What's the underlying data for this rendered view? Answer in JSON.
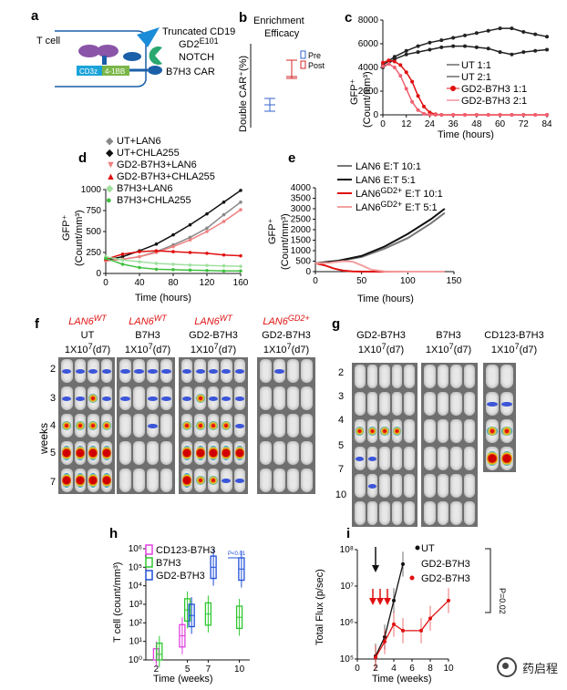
{
  "panel_a": {
    "letter": "a",
    "t_cell": "T cell",
    "truncated_cd19": "Truncated CD19",
    "gd2_e101": "GD2",
    "gd2_sup": "E101",
    "notch": "NOTCH",
    "cd3z": "CD3z",
    "four_1bb": "4-1BB",
    "b7h3_car": "B7H3 CAR",
    "colors": {
      "cd3z": "#1aa3d9",
      "four_1bb": "#7ab648",
      "notch": "#2aa870",
      "triangle": "#1a8cd8",
      "purple": "#8a55a8"
    }
  },
  "panel_b": {
    "letter": "b",
    "title1": "Enrichment",
    "title2": "Efficacy",
    "ylabel": "Double CAR⁺(%)",
    "legend": [
      "Pre",
      "Post"
    ],
    "colors": {
      "pre": "#3366cc",
      "post": "#d62728"
    }
  },
  "panel_c": {
    "letter": "c",
    "ylabel1": "GFP⁺",
    "ylabel2": "(Count/mm³)",
    "xlabel": "Time (hours)",
    "legend": [
      "UT 1:1",
      "UT 2:1",
      "GD2-B7H3 1:1",
      "GD2-B7H3 2:1"
    ]
  },
  "panel_d": {
    "letter": "d",
    "ylabel1": "GFP⁺",
    "ylabel2": "(Count/mm³)",
    "xlabel": "Time (hours)",
    "legend": [
      "UT+LAN6",
      "UT+CHLA255",
      "GD2-B7H3+LAN6",
      "GD2-B7H3+CHLA255",
      "B7H3+LAN6",
      "B7H3+CHLA255"
    ]
  },
  "panel_e": {
    "letter": "e",
    "ylabel1": "GFP⁺",
    "ylabel2": "(Count/mm³)",
    "xlabel": "Time (hours)",
    "legend": [
      "LAN6 E:T 10:1",
      "LAN6 E:T 5:1",
      "LAN6",
      "E:T 10:1",
      "LAN6",
      "E:T 5:1"
    ],
    "legend_sup": "GD2+"
  },
  "panel_f": {
    "letter": "f",
    "weeks_label": "weeks",
    "week_rows": [
      "2",
      "3",
      "4",
      "5",
      "7"
    ],
    "groups": [
      {
        "line1": "LAN6",
        "line1_sup": "WT",
        "line2": "UT",
        "line3": "1X10",
        "line3_sup": "7",
        "line3_end": "(d7)"
      },
      {
        "line1": "LAN6",
        "line1_sup": "WT",
        "line2": "B7H3",
        "line3": "1X10",
        "line3_sup": "7",
        "line3_end": "(d7)"
      },
      {
        "line1": "LAN6",
        "line1_sup": "WT",
        "line2": "GD2-B7H3",
        "line3": "1X10",
        "line3_sup": "7",
        "line3_end": "(d7)"
      },
      {
        "line1": "LAN6",
        "line1_sup": "GD2+",
        "line2": "GD2-B7H3",
        "line3": "1X10",
        "line3_sup": "7",
        "line3_end": "(d7)"
      }
    ]
  },
  "panel_g": {
    "letter": "g",
    "week_rows": [
      "2",
      "3",
      "4",
      "5",
      "7",
      "10"
    ],
    "groups": [
      {
        "line1": "GD2-B7H3",
        "line2": "1X10",
        "line2_sup": "7",
        "line2_end": "(d7)"
      },
      {
        "line1": "B7H3",
        "line2": "1X10",
        "line2_sup": "7",
        "line2_end": "(d7)"
      },
      {
        "line1": "CD123-B7H3",
        "line2": "1X10",
        "line2_sup": "7",
        "line2_end": "(d7)"
      }
    ]
  },
  "panel_h": {
    "letter": "h",
    "ylabel": "T cell (count/mm³)",
    "xlabel": "Time (weeks)",
    "legend": [
      "CD123-B7H3",
      "B7H3",
      "GD2-B7H3"
    ],
    "pvalue": "P<0.01",
    "xticks": [
      "2",
      "5",
      "7",
      "10"
    ],
    "yticks": [
      "10⁰",
      "10¹",
      "10²",
      "10³",
      "10⁴",
      "10⁵",
      "10⁶"
    ],
    "colors": {
      "cd123": "#e040e0",
      "b7h3": "#2ec82e",
      "gd2": "#1f4fd8"
    }
  },
  "panel_i": {
    "letter": "i",
    "ylabel": "Total Flux (p/sec)",
    "xlabel": "Time (weeks)",
    "legend": [
      "UT",
      "GD2-B7H3",
      "GD2-B7H3"
    ],
    "pvalue": "P=0.02",
    "xticks": [
      "0",
      "2",
      "4",
      "6",
      "8",
      "10"
    ],
    "yticks": [
      "10⁵",
      "10⁶",
      "10⁷",
      "10⁸"
    ]
  },
  "watermark": "药启程",
  "chart_data": [
    {
      "type": "line",
      "panel": "c",
      "xlabel": "Time (hours)",
      "ylabel": "GFP+ (Count/mm3)",
      "xlim": [
        0,
        84
      ],
      "ylim": [
        0,
        8000
      ],
      "xticks": [
        0,
        12,
        24,
        36,
        48,
        60,
        72,
        84
      ],
      "yticks": [
        0,
        2000,
        4000,
        6000,
        8000
      ],
      "series": [
        {
          "name": "UT 1:1",
          "color": "#222222",
          "x": [
            0,
            6,
            12,
            18,
            24,
            30,
            36,
            42,
            48,
            54,
            60,
            66,
            72,
            78,
            84
          ],
          "y": [
            4200,
            4900,
            5400,
            5800,
            6100,
            6300,
            6500,
            6700,
            6900,
            7100,
            7300,
            7300,
            7000,
            6800,
            6600
          ]
        },
        {
          "name": "UT 2:1",
          "color": "#222222",
          "x": [
            0,
            6,
            12,
            18,
            24,
            30,
            36,
            42,
            48,
            54,
            60,
            66,
            72,
            78,
            84
          ],
          "y": [
            4000,
            4700,
            5100,
            5300,
            5500,
            5700,
            5800,
            5800,
            5700,
            5600,
            5300,
            5100,
            5300,
            5400,
            5500
          ]
        },
        {
          "name": "GD2-B7H3 1:1",
          "color": "#e01010",
          "x": [
            0,
            3,
            6,
            9,
            12,
            15,
            18,
            21,
            24,
            27,
            30,
            36,
            42,
            48,
            54,
            60,
            66,
            72,
            78,
            84
          ],
          "y": [
            4400,
            4600,
            4500,
            4200,
            3600,
            2800,
            1600,
            700,
            200,
            50,
            0,
            0,
            0,
            0,
            0,
            0,
            0,
            0,
            0,
            0
          ]
        },
        {
          "name": "GD2-B7H3 2:1",
          "color": "#f06070",
          "x": [
            0,
            3,
            6,
            9,
            12,
            15,
            18,
            21,
            24,
            27,
            30,
            36,
            42,
            48,
            54,
            60,
            66,
            72,
            78,
            84
          ],
          "y": [
            4100,
            4300,
            4000,
            3300,
            2200,
            1100,
            400,
            100,
            0,
            0,
            0,
            0,
            0,
            0,
            0,
            0,
            0,
            0,
            0,
            0
          ]
        }
      ]
    },
    {
      "type": "line",
      "panel": "d",
      "xlabel": "Time (hours)",
      "ylabel": "GFP+ (Count/mm3)",
      "xlim": [
        0,
        160
      ],
      "ylim": [
        0,
        1000
      ],
      "xticks": [
        0,
        40,
        80,
        120,
        160
      ],
      "yticks": [
        0,
        250,
        500,
        750,
        1000
      ],
      "series": [
        {
          "name": "UT+LAN6",
          "color": "#888888",
          "x": [
            0,
            20,
            40,
            60,
            80,
            100,
            120,
            140,
            160
          ],
          "y": [
            150,
            170,
            200,
            260,
            340,
            430,
            540,
            700,
            850
          ]
        },
        {
          "name": "UT+CHLA255",
          "color": "#111111",
          "x": [
            0,
            20,
            40,
            60,
            80,
            100,
            120,
            140,
            160
          ],
          "y": [
            160,
            200,
            270,
            350,
            460,
            580,
            710,
            850,
            990
          ]
        },
        {
          "name": "GD2-B7H3+LAN6",
          "color": "#f08080",
          "x": [
            0,
            20,
            40,
            60,
            80,
            100,
            120,
            140,
            160
          ],
          "y": [
            150,
            170,
            200,
            250,
            320,
            400,
            500,
            620,
            760
          ]
        },
        {
          "name": "GD2-B7H3+CHLA255",
          "color": "#e01010",
          "x": [
            0,
            20,
            40,
            60,
            80,
            100,
            120,
            140,
            160
          ],
          "y": [
            170,
            230,
            260,
            270,
            260,
            250,
            240,
            220,
            210
          ]
        },
        {
          "name": "B7H3+LAN6",
          "color": "#a0e0a0",
          "x": [
            0,
            20,
            40,
            60,
            80,
            100,
            120,
            140,
            160
          ],
          "y": [
            200,
            160,
            140,
            120,
            110,
            100,
            95,
            90,
            85
          ]
        },
        {
          "name": "B7H3+CHLA255",
          "color": "#40c040",
          "x": [
            0,
            20,
            40,
            60,
            80,
            100,
            120,
            140,
            160
          ],
          "y": [
            180,
            110,
            70,
            50,
            45,
            40,
            35,
            30,
            30
          ]
        }
      ]
    },
    {
      "type": "line",
      "panel": "e",
      "xlabel": "Time (hours)",
      "ylabel": "GFP+ (Count/mm3)",
      "xlim": [
        0,
        150
      ],
      "ylim": [
        0,
        4000
      ],
      "xticks": [
        0,
        50,
        100,
        150
      ],
      "yticks": [
        0,
        500,
        1000,
        1500,
        2000,
        2500,
        3000,
        3500,
        4000
      ],
      "series": [
        {
          "name": "LAN6 E:T 10:1",
          "color": "#777777",
          "x": [
            0,
            25,
            50,
            75,
            100,
            125,
            140
          ],
          "y": [
            400,
            500,
            700,
            1100,
            1600,
            2300,
            2800
          ]
        },
        {
          "name": "LAN6 E:T 5:1",
          "color": "#111111",
          "x": [
            0,
            25,
            50,
            75,
            100,
            125,
            140
          ],
          "y": [
            400,
            520,
            750,
            1200,
            1800,
            2500,
            3000
          ]
        },
        {
          "name": "LAN6GD2+ E:T 10:1",
          "color": "#e01010",
          "x": [
            0,
            10,
            20,
            30,
            40,
            50,
            75,
            100,
            125,
            140
          ],
          "y": [
            400,
            300,
            150,
            50,
            10,
            0,
            0,
            0,
            0,
            0
          ]
        },
        {
          "name": "LAN6GD2+ E:T 5:1",
          "color": "#f3a0a0",
          "x": [
            0,
            15,
            30,
            40,
            50,
            60,
            75,
            100,
            125,
            140
          ],
          "y": [
            400,
            420,
            500,
            480,
            300,
            100,
            10,
            0,
            0,
            0
          ]
        }
      ]
    },
    {
      "type": "box",
      "panel": "h",
      "yscale": "log",
      "xlabel": "Time (weeks)",
      "ylabel": "T cell (count/mm3)",
      "xticks": [
        2,
        5,
        7,
        10
      ],
      "series": [
        {
          "name": "CD123-B7H3",
          "color": "#e040e0",
          "x": [
            2,
            4.5
          ],
          "median": [
            1,
            20
          ]
        },
        {
          "name": "B7H3",
          "color": "#2ec82e",
          "x": [
            2.3,
            5,
            7,
            10
          ],
          "median": [
            2,
            500,
            300,
            200
          ]
        },
        {
          "name": "GD2-B7H3",
          "color": "#1f4fd8",
          "x": [
            5.4,
            7.5,
            10.2
          ],
          "median": [
            250,
            100000,
            80000
          ]
        }
      ]
    },
    {
      "type": "line",
      "panel": "i",
      "yscale": "log",
      "xlabel": "Time (weeks)",
      "ylabel": "Total Flux (p/sec)",
      "xlim": [
        0,
        10
      ],
      "xticks": [
        0,
        2,
        4,
        6,
        8,
        10
      ],
      "series": [
        {
          "name": "UT",
          "color": "#111111",
          "x": [
            2,
            3,
            4,
            5
          ],
          "y": [
            120000,
            400000,
            4000000,
            40000000
          ]
        },
        {
          "name": "GD2-B7H3",
          "color": "#e01010",
          "x": [
            2,
            3,
            4,
            5,
            7,
            8,
            10
          ],
          "y": [
            110000,
            300000,
            900000,
            600000,
            600000,
            1300000,
            4000000
          ]
        }
      ]
    }
  ]
}
